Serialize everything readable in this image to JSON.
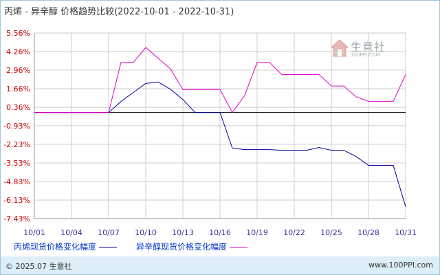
{
  "title": "丙烯 - 异辛醇 价格趋势比较(2022-10-01 - 2022-10-31)",
  "watermark": {
    "brand": "生意社",
    "url": "100PPI.COM"
  },
  "footer": {
    "copyright": "© 2025.07 生意社",
    "site": "www.100PPI.com"
  },
  "colors": {
    "series1": "#000099",
    "series2": "#e600cc",
    "grid": "#cccccc",
    "axis": "#000000",
    "ytick": "#cc0000",
    "xtick": "#333399"
  },
  "chart_data": {
    "type": "line",
    "title": "丙烯 - 异辛醇 价格趋势比较(2022-10-01 - 2022-10-31)",
    "ylabel": "",
    "xlabel": "",
    "ylim": [
      -7.43,
      5.56
    ],
    "y_ticks": [
      "5.56%",
      "4.26%",
      "2.96%",
      "1.66%",
      "0.36%",
      "-0.93%",
      "-2.23%",
      "-3.53%",
      "-4.83%",
      "-6.13%",
      "-7.43%"
    ],
    "y_tick_values": [
      5.56,
      4.26,
      2.96,
      1.66,
      0.36,
      -0.93,
      -2.23,
      -3.53,
      -4.83,
      -6.13,
      -7.43
    ],
    "x_ticks": [
      "10/01",
      "10/04",
      "10/07",
      "10/10",
      "10/13",
      "10/16",
      "10/19",
      "10/22",
      "10/25",
      "10/28",
      "10/31"
    ],
    "x_tick_days": [
      1,
      4,
      7,
      10,
      13,
      16,
      19,
      22,
      25,
      28,
      31
    ],
    "grid": true,
    "legend": "bottom",
    "series": [
      {
        "name": "丙烯现货价格变化幅度",
        "x": [
          1,
          2,
          3,
          4,
          5,
          6,
          7,
          8,
          9,
          10,
          11,
          12,
          13,
          14,
          15,
          16,
          17,
          18,
          19,
          20,
          21,
          22,
          23,
          24,
          25,
          26,
          27,
          28,
          29,
          30,
          31
        ],
        "values": [
          0.0,
          0.0,
          0.0,
          0.0,
          0.0,
          0.0,
          0.0,
          0.77,
          1.4,
          2.03,
          2.13,
          1.62,
          0.91,
          0.0,
          0.0,
          0.0,
          -2.5,
          -2.6,
          -2.6,
          -2.6,
          -2.65,
          -2.65,
          -2.65,
          -2.45,
          -2.65,
          -2.65,
          -3.08,
          -3.7,
          -3.7,
          -3.7,
          -6.6
        ]
      },
      {
        "name": "异辛醇现货价格变化幅度",
        "x": [
          1,
          2,
          3,
          4,
          5,
          6,
          7,
          8,
          9,
          10,
          11,
          12,
          13,
          14,
          15,
          16,
          17,
          18,
          19,
          20,
          21,
          22,
          23,
          24,
          25,
          26,
          27,
          28,
          29,
          30,
          31
        ],
        "values": [
          0.0,
          0.0,
          0.0,
          0.0,
          0.0,
          0.0,
          0.0,
          3.5,
          3.5,
          4.55,
          3.79,
          3.05,
          1.6,
          1.6,
          1.6,
          1.6,
          0.0,
          1.2,
          3.5,
          3.5,
          2.65,
          2.65,
          2.65,
          2.65,
          1.85,
          1.85,
          1.1,
          0.78,
          0.78,
          0.78,
          2.65
        ]
      }
    ]
  }
}
